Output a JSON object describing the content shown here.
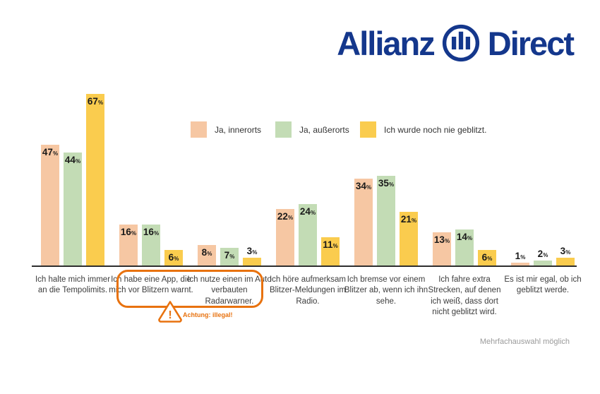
{
  "logo": {
    "word1": "Allianz",
    "word2": "Direct",
    "color": "#14378C"
  },
  "chart_data": {
    "type": "bar",
    "unit": "%",
    "title": "",
    "xlabel": "",
    "ylabel": "",
    "ylim": [
      0,
      70
    ],
    "grid": false,
    "legend_position": "top-center",
    "value_labels": "on-bars",
    "categories": [
      "Ich halte mich immer an die Tempolimits.",
      "Ich habe eine App, die mich vor Blitzern warnt.",
      "Ich nutze einen im Auto verbauten Radarwarner.",
      "Ich höre aufmerksam Blitzer-Meldungen im Radio.",
      "Ich bremse vor einem Blitzer ab, wenn ich ihn sehe.",
      "Ich fahre extra Strecken, auf denen ich weiß, dass dort nicht geblitzt wird.",
      "Es ist mir egal, ob ich geblitzt werde."
    ],
    "series": [
      {
        "name": "Ja, innerorts",
        "color": "#F6C7A3",
        "values": [
          47,
          16,
          8,
          22,
          34,
          13,
          1
        ]
      },
      {
        "name": "Ja, außerorts",
        "color": "#C3DCB5",
        "values": [
          44,
          16,
          7,
          24,
          35,
          14,
          2
        ]
      },
      {
        "name": "Ich wurde noch nie geblitzt.",
        "color": "#FACC4E",
        "values": [
          67,
          6,
          3,
          11,
          21,
          6,
          3
        ]
      }
    ]
  },
  "annotation": {
    "warning_text": "Achtung: illegal!",
    "color": "#E8720F",
    "highlighted_categories": [
      "Ich habe eine App, die mich vor Blitzern warnt.",
      "Ich nutze einen im Auto verbauten Radarwarner."
    ]
  },
  "footer": {
    "note": "Mehrfachauswahl möglich"
  }
}
